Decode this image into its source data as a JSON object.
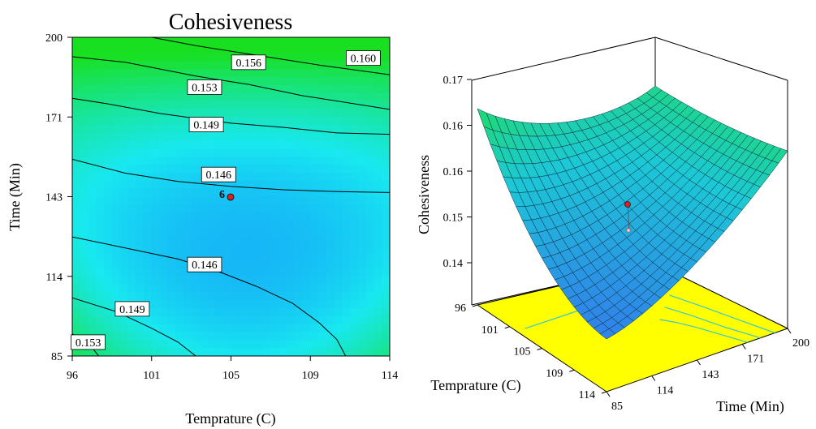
{
  "chart_data": [
    {
      "type": "contour",
      "title": "Cohesiveness",
      "xlabel": "Temprature (C)",
      "ylabel": "Time (Min)",
      "xlim": [
        96,
        114
      ],
      "ylim": [
        85,
        200
      ],
      "x_ticks": [
        "96",
        "101",
        "105",
        "109",
        "114"
      ],
      "y_ticks": [
        "85",
        "114",
        "143",
        "171",
        "200"
      ],
      "contour_levels": [
        "0.160",
        "0.156",
        "0.153",
        "0.149",
        "0.146",
        "0.146",
        "0.149",
        "0.153"
      ],
      "design_point": {
        "label": "6",
        "x": 105,
        "y": 143
      },
      "colors": {
        "low": "#1273ff",
        "mid": "#18e8f0",
        "high": "#18e020"
      }
    },
    {
      "type": "surface",
      "zlabel": "Cohesiveness",
      "xlabel": "Temprature (C)",
      "ylabel": "Time (Min)",
      "x_ticks": [
        "96",
        "101",
        "105",
        "109",
        "114"
      ],
      "y_ticks": [
        "85",
        "114",
        "143",
        "171",
        "200"
      ],
      "z_ticks": [
        "0.14",
        "0.15",
        "0.16",
        "0.16",
        "0.17"
      ],
      "zlim": [
        0.136,
        0.172
      ],
      "colors": {
        "surface_low": "#2f86e8",
        "surface_high": "#1ee33e",
        "floor": "#ffff00",
        "floor_contour": "#37c8cf"
      }
    }
  ]
}
